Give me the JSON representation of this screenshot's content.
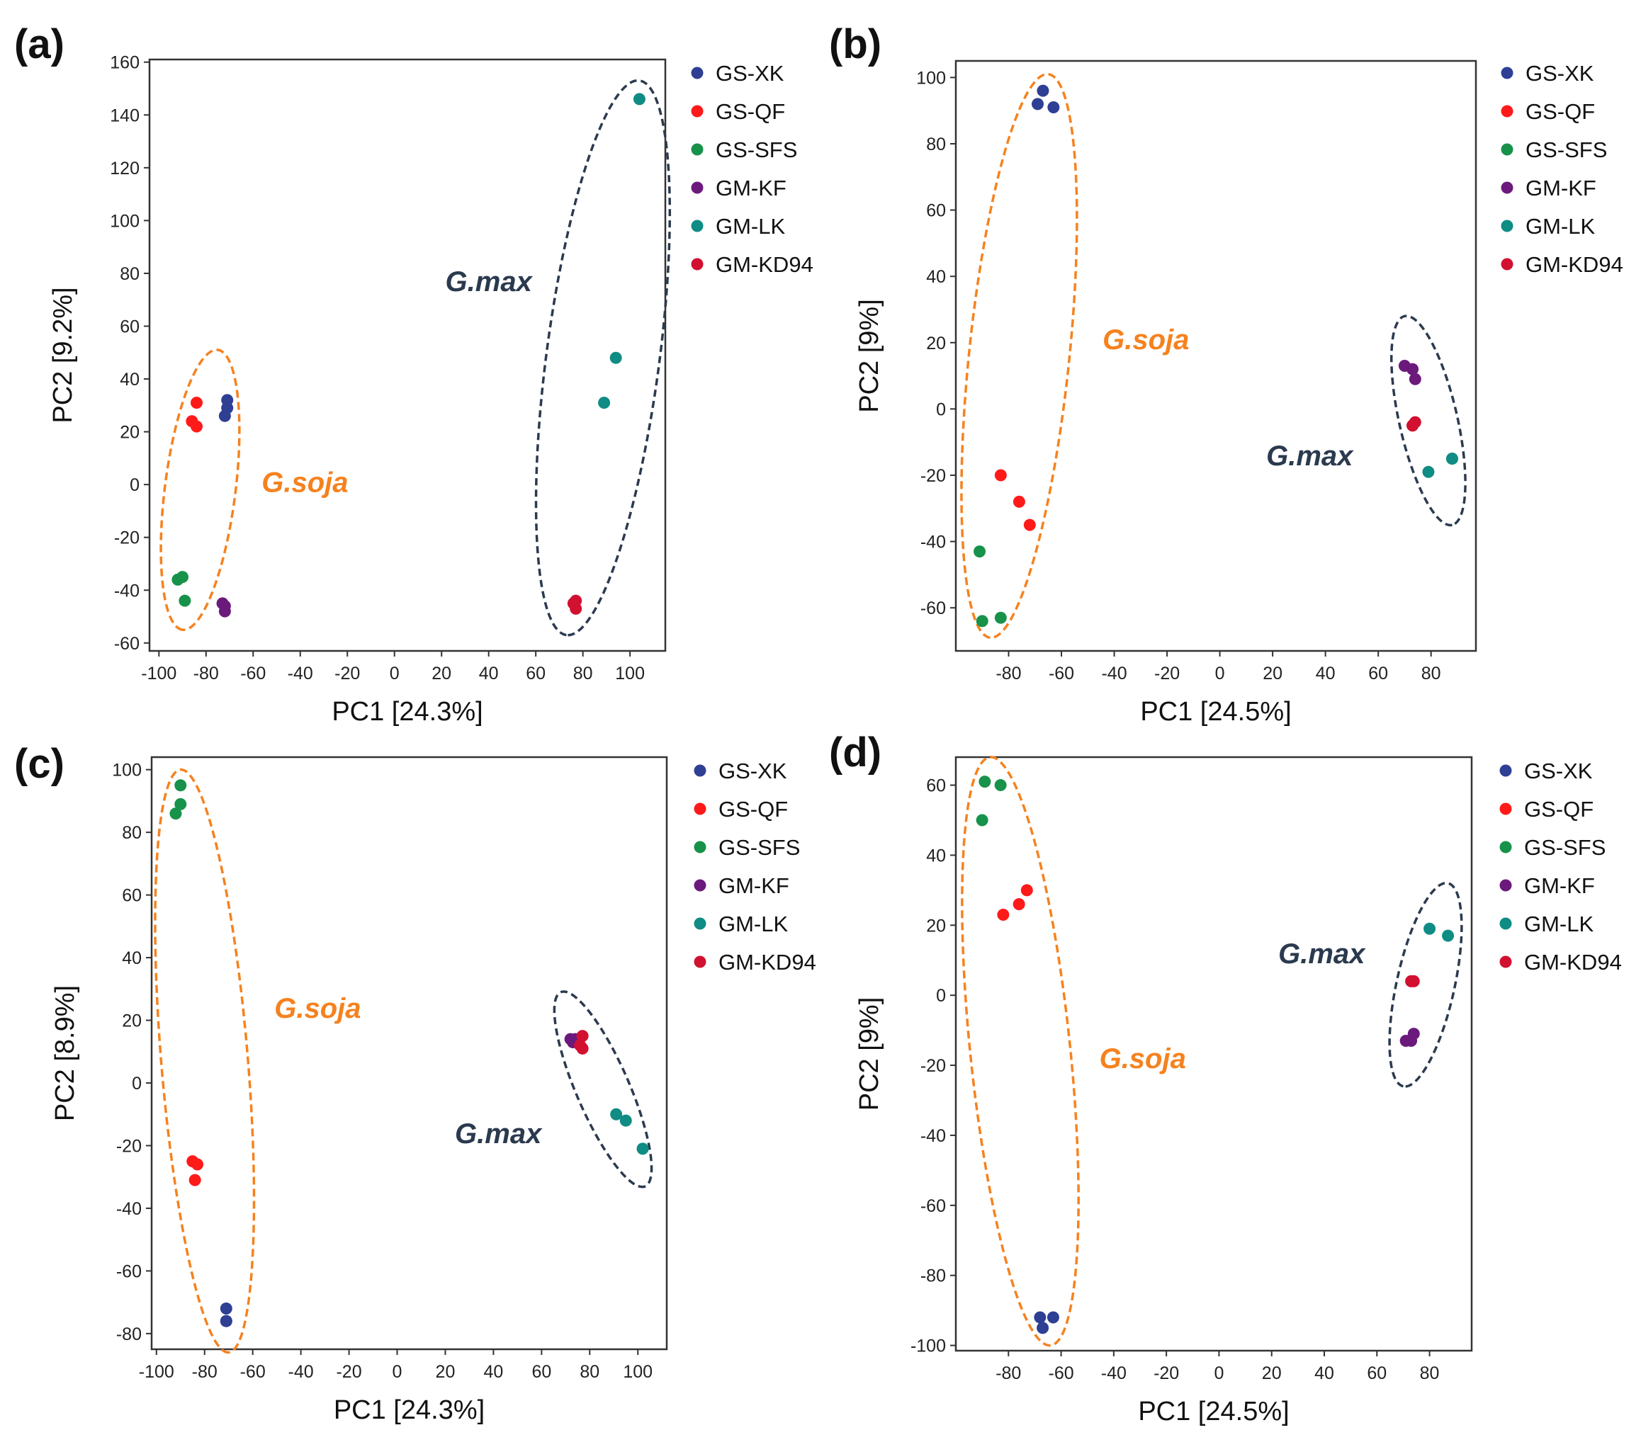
{
  "colors": {
    "GS-XK": "#2e3f94",
    "GS-QF": "#ff1a1a",
    "GS-SFS": "#17924a",
    "GM-KF": "#6b1a7c",
    "GM-LK": "#0f8c84",
    "GM-KD94": "#d21030",
    "G.soja": "#f5821f",
    "G.max": "#2b3a4e"
  },
  "chart_data": [
    {
      "type": "scatter",
      "panel_label": "(a)",
      "xlabel": "PC1 [24.3%]",
      "ylabel": "PC2 [9.2%]",
      "xlim": [
        -104,
        115
      ],
      "ylim": [
        -63,
        161
      ],
      "xticks": [
        "-100",
        "-80",
        "-60",
        "-40",
        "-20",
        "0",
        "20",
        "40",
        "60",
        "80",
        "100"
      ],
      "yticks": [
        "-60",
        "-40",
        "-20",
        "0",
        "20",
        "40",
        "60",
        "80",
        "100",
        "120",
        "140",
        "160"
      ],
      "legend": [
        "GS-XK",
        "GS-QF",
        "GS-SFS",
        "GM-KF",
        "GM-LK",
        "GM-KD94"
      ],
      "legend_position": "outside-right",
      "series": [
        {
          "name": "GS-XK",
          "x": [
            -71,
            -71,
            -72
          ],
          "y": [
            32,
            29,
            26
          ]
        },
        {
          "name": "GS-QF",
          "x": [
            -84,
            -86,
            -84
          ],
          "y": [
            31,
            24,
            22
          ]
        },
        {
          "name": "GS-SFS",
          "x": [
            -92,
            -90,
            -89
          ],
          "y": [
            -36,
            -35,
            -44
          ]
        },
        {
          "name": "GM-KF",
          "x": [
            -72,
            -73,
            -72
          ],
          "y": [
            -48,
            -45,
            -46
          ]
        },
        {
          "name": "GM-LK",
          "x": [
            104,
            94,
            89
          ],
          "y": [
            146,
            48,
            31
          ]
        },
        {
          "name": "GM-KD94",
          "x": [
            77,
            76,
            77
          ],
          "y": [
            -44,
            -45,
            -47
          ]
        }
      ],
      "groups": [
        {
          "name": "G.soja",
          "label_at": [
            -38,
            1
          ],
          "ellipse": {
            "end1": [
              -75,
              51
            ],
            "end2": [
              -90,
              -55
            ],
            "width": 30
          }
        },
        {
          "name": "G.max",
          "label_at": [
            40,
            77
          ],
          "ellipse": {
            "end1": [
              104,
              153
            ],
            "end2": [
              73,
              -57
            ],
            "width": 48
          }
        }
      ]
    },
    {
      "type": "scatter",
      "panel_label": "(b)",
      "xlabel": "PC1 [24.5%]",
      "ylabel": "PC2 [9%]",
      "xlim": [
        -100,
        97
      ],
      "ylim": [
        -73,
        105
      ],
      "xticks": [
        "-80",
        "-60",
        "-40",
        "-20",
        "0",
        "20",
        "40",
        "60",
        "80"
      ],
      "yticks": [
        "-60",
        "-40",
        "-20",
        "0",
        "20",
        "40",
        "60",
        "80",
        "100"
      ],
      "legend": [
        "GS-XK",
        "GS-QF",
        "GS-SFS",
        "GM-KF",
        "GM-LK",
        "GM-KD94"
      ],
      "legend_position": "outside-right",
      "series": [
        {
          "name": "GS-XK",
          "x": [
            -67,
            -69,
            -63
          ],
          "y": [
            96,
            92,
            91
          ]
        },
        {
          "name": "GS-QF",
          "x": [
            -83,
            -76,
            -72
          ],
          "y": [
            -20,
            -28,
            -35
          ]
        },
        {
          "name": "GS-SFS",
          "x": [
            -91,
            -90,
            -83
          ],
          "y": [
            -43,
            -64,
            -63
          ]
        },
        {
          "name": "GM-KF",
          "x": [
            70,
            73,
            74
          ],
          "y": [
            13,
            12,
            9
          ]
        },
        {
          "name": "GM-LK",
          "x": [
            79,
            88,
            88
          ],
          "y": [
            -19,
            -15,
            -15
          ]
        },
        {
          "name": "GM-KD94",
          "x": [
            73,
            74,
            73
          ],
          "y": [
            -5,
            -4,
            -5
          ]
        }
      ],
      "groups": [
        {
          "name": "G.soja",
          "label_at": [
            -28,
            21
          ],
          "ellipse": {
            "end1": [
              -65,
              101
            ],
            "end2": [
              -87,
              -69
            ],
            "width": 38
          }
        },
        {
          "name": "G.max",
          "label_at": [
            34,
            -14
          ],
          "ellipse": {
            "end1": [
              70,
              28
            ],
            "end2": [
              88,
              -35
            ],
            "width": 22
          }
        }
      ]
    },
    {
      "type": "scatter",
      "panel_label": "(c)",
      "xlabel": "PC1 [24.3%]",
      "ylabel": "PC2 [8.9%]",
      "xlim": [
        -102,
        112
      ],
      "ylim": [
        -85,
        104
      ],
      "xticks": [
        "-100",
        "-80",
        "-60",
        "-40",
        "-20",
        "0",
        "20",
        "40",
        "60",
        "80",
        "100"
      ],
      "yticks": [
        "-80",
        "-60",
        "-40",
        "-20",
        "0",
        "20",
        "40",
        "60",
        "80",
        "100"
      ],
      "legend": [
        "GS-XK",
        "GS-QF",
        "GS-SFS",
        "GM-KF",
        "GM-LK",
        "GM-KD94"
      ],
      "legend_position": "outside-right",
      "series": [
        {
          "name": "GS-XK",
          "x": [
            -71,
            -71,
            -71
          ],
          "y": [
            -72,
            -76,
            -76
          ]
        },
        {
          "name": "GS-QF",
          "x": [
            -85,
            -83,
            -84
          ],
          "y": [
            -25,
            -26,
            -31
          ]
        },
        {
          "name": "GS-SFS",
          "x": [
            -90,
            -90,
            -92
          ],
          "y": [
            95,
            89,
            86
          ]
        },
        {
          "name": "GM-KF",
          "x": [
            72,
            73,
            74
          ],
          "y": [
            14,
            13,
            14
          ]
        },
        {
          "name": "GM-LK",
          "x": [
            91,
            95,
            102
          ],
          "y": [
            -10,
            -12,
            -21
          ]
        },
        {
          "name": "GM-KD94",
          "x": [
            77,
            77,
            76
          ],
          "y": [
            15,
            11,
            12
          ]
        }
      ],
      "groups": [
        {
          "name": "G.soja",
          "label_at": [
            -33,
            24
          ],
          "ellipse": {
            "end1": [
              -90,
              100
            ],
            "end2": [
              -70,
              -86
            ],
            "width": 36
          }
        },
        {
          "name": "G.max",
          "label_at": [
            42,
            -16
          ],
          "ellipse": {
            "end1": [
              68,
              29
            ],
            "end2": [
              103,
              -33
            ],
            "width": 22
          }
        }
      ]
    },
    {
      "type": "scatter",
      "panel_label": "(d)",
      "xlabel": "PC1 [24.5%]",
      "ylabel": "PC2 [9%]",
      "xlim": [
        -100,
        96
      ],
      "ylim": [
        -101.5,
        68
      ],
      "xticks": [
        "-80",
        "-60",
        "-40",
        "-20",
        "0",
        "20",
        "40",
        "60",
        "80"
      ],
      "yticks": [
        "-100",
        "-80",
        "-60",
        "-40",
        "-20",
        "0",
        "20",
        "40",
        "60"
      ],
      "legend": [
        "GS-XK",
        "GS-QF",
        "GS-SFS",
        "GM-KF",
        "GM-LK",
        "GM-KD94"
      ],
      "legend_position": "outside-right",
      "series": [
        {
          "name": "GS-XK",
          "x": [
            -68,
            -63,
            -67
          ],
          "y": [
            -92,
            -92,
            -95
          ]
        },
        {
          "name": "GS-QF",
          "x": [
            -82,
            -76,
            -73
          ],
          "y": [
            23,
            26,
            30
          ]
        },
        {
          "name": "GS-SFS",
          "x": [
            -89,
            -83,
            -90
          ],
          "y": [
            61,
            60,
            50
          ]
        },
        {
          "name": "GM-KF",
          "x": [
            71,
            73,
            74
          ],
          "y": [
            -13,
            -13,
            -11
          ]
        },
        {
          "name": "GM-LK",
          "x": [
            80,
            87
          ],
          "y": [
            19,
            17
          ]
        },
        {
          "name": "GM-KD94",
          "x": [
            73,
            74
          ],
          "y": [
            4,
            4
          ]
        }
      ],
      "groups": [
        {
          "name": "G.soja",
          "label_at": [
            -29,
            -18
          ],
          "ellipse": {
            "end1": [
              -87,
              68
            ],
            "end2": [
              -64,
              -100
            ],
            "width": 38
          }
        },
        {
          "name": "G.max",
          "label_at": [
            39,
            12
          ],
          "ellipse": {
            "end1": [
              87,
              32
            ],
            "end2": [
              70,
              -26
            ],
            "width": 22
          }
        }
      ]
    }
  ]
}
